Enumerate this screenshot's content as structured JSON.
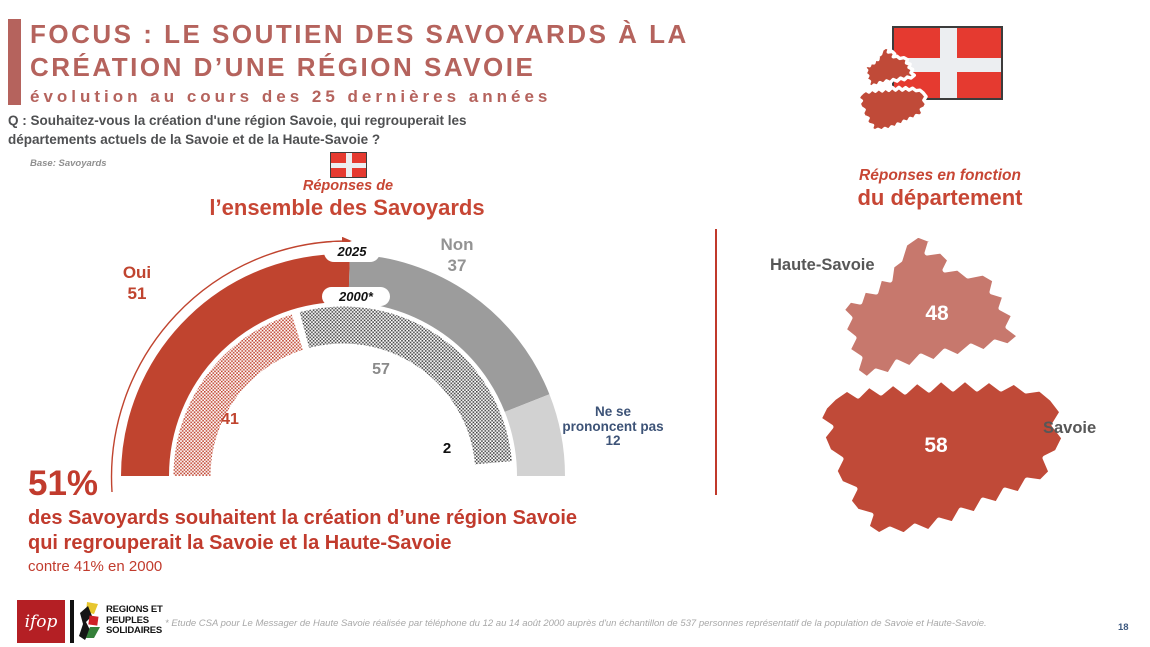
{
  "slide": {
    "title_line1": "FOCUS : LE SOUTIEN DES SAVOYARDS À LA",
    "title_line2": "CRÉATION D’UNE RÉGION SAVOIE",
    "subtitle": "évolution au cours des 25 dernières années",
    "question_line1": "Q : Souhaitez-vous la création d'une région Savoie, qui regrouperait les",
    "question_line2": "départements actuels de la Savoie et de la Haute-Savoie ?",
    "base_note": "Base: Savoyards",
    "page_number": "18"
  },
  "gauge_section": {
    "header_line1": "Réponses de",
    "header_line2": "l’ensemble des Savoyards",
    "oui_label": "Oui",
    "non_label": "Non",
    "nsp_label_line1": "Ne se",
    "nsp_label_line2": "prononcent pas"
  },
  "chart_data": {
    "type": "gauge",
    "subtype": "semi-donut-two-rings",
    "title": "Réponses de l’ensemble des Savoyards",
    "unit": "%",
    "arc_total_degrees": 180,
    "categories": [
      "Oui",
      "Non",
      "Ne se prononcent pas"
    ],
    "series": [
      {
        "name": "2025",
        "ring": "outer",
        "style": "solid",
        "values": [
          51,
          37,
          12
        ]
      },
      {
        "name": "2000*",
        "ring": "inner",
        "style": "dotted",
        "values": [
          41,
          57,
          2
        ]
      }
    ],
    "map": {
      "type": "choropleth",
      "title": "Réponses en fonction du département",
      "regions": [
        {
          "name": "Haute-Savoie",
          "value": 48
        },
        {
          "name": "Savoie",
          "value": 58
        }
      ]
    }
  },
  "takeaway": {
    "big_percent": "51%",
    "line1": "des Savoyards souhaitent la création d’une région Savoie",
    "line2": "qui regrouperait la Savoie et la Haute-Savoie",
    "line3": "contre 41% en 2000"
  },
  "map_section": {
    "header_line1": "Réponses en fonction",
    "header_line2": "du département"
  },
  "footer": {
    "ifop_logo_text": "ifop",
    "rps_line1": "REGIONS ET",
    "rps_line2": "PEUPLES",
    "rps_line3": "SOLIDAIRES",
    "footnote": "* Etude CSA pour Le Messager de Haute Savoie réalisée par téléphone du 12 au 14 août 2000 auprès d'un échantillon de 537 personnes représentatif de la population de Savoie et Haute-Savoie."
  },
  "colors": {
    "title_rose": "#b5635d",
    "text_red": "#c13b2d",
    "oui_red": "#c0442f",
    "non_gray": "#9c9c9c",
    "nsp_gray": "#d2d2d2",
    "dot_red": "#c0442f",
    "dot_gray": "#434343",
    "nsp_label_blue": "#3d5377",
    "haute_savoie_fill": "#c7786d",
    "savoie_fill": "#c04a38",
    "flag_red": "#e53a30",
    "ifop_red": "#b41f24",
    "page_number_blue": "#3e5a80"
  }
}
